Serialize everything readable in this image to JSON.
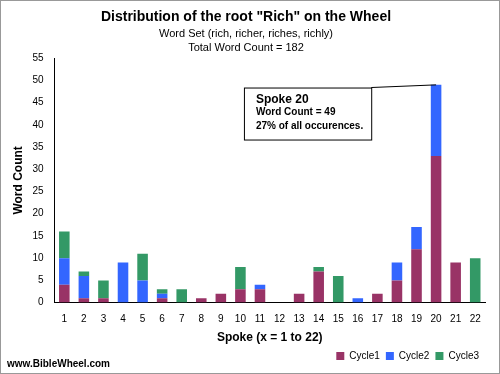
{
  "chart_data": {
    "type": "bar",
    "title": "Distribution of the root \"Rich\" on the Wheel",
    "subtitle": [
      "Word Set (rich, richer, riches, richly)",
      "Total Word Count = 182"
    ],
    "x_label": "Spoke (x = 1 to 22)",
    "y_label": "Word Count",
    "source": "www.BibleWheel.com",
    "annotation": {
      "category": "20",
      "text": [
        "Spoke 20",
        "Word Count = 49",
        "27% of all occurences."
      ]
    },
    "categories": [
      "1",
      "2",
      "3",
      "4",
      "5",
      "6",
      "7",
      "8",
      "9",
      "10",
      "11",
      "12",
      "13",
      "14",
      "15",
      "16",
      "17",
      "18",
      "19",
      "20",
      "21",
      "22"
    ],
    "series": [
      {
        "name": "Cycle1",
        "color": "#993366",
        "values": [
          4,
          1,
          1,
          0,
          0,
          1,
          0,
          1,
          2,
          3,
          3,
          0,
          2,
          7,
          0,
          0,
          2,
          5,
          12,
          33,
          9,
          0
        ]
      },
      {
        "name": "Cycle2",
        "color": "#3366ff",
        "values": [
          6,
          5,
          0,
          9,
          5,
          1,
          0,
          0,
          0,
          0,
          1,
          0,
          0,
          0,
          0,
          1,
          0,
          4,
          5,
          16,
          0,
          0
        ]
      },
      {
        "name": "Cycle3",
        "color": "#339966",
        "values": [
          6,
          1,
          4,
          0,
          6,
          1,
          3,
          0,
          0,
          5,
          0,
          0,
          0,
          1,
          6,
          0,
          0,
          0,
          0,
          0,
          0,
          10
        ]
      }
    ],
    "stacked": true,
    "ylim": [
      0,
      55
    ],
    "yticks": [
      0,
      5,
      10,
      15,
      20,
      25,
      30,
      35,
      40,
      45,
      50,
      55
    ],
    "grid": false,
    "legend": "lower right"
  }
}
